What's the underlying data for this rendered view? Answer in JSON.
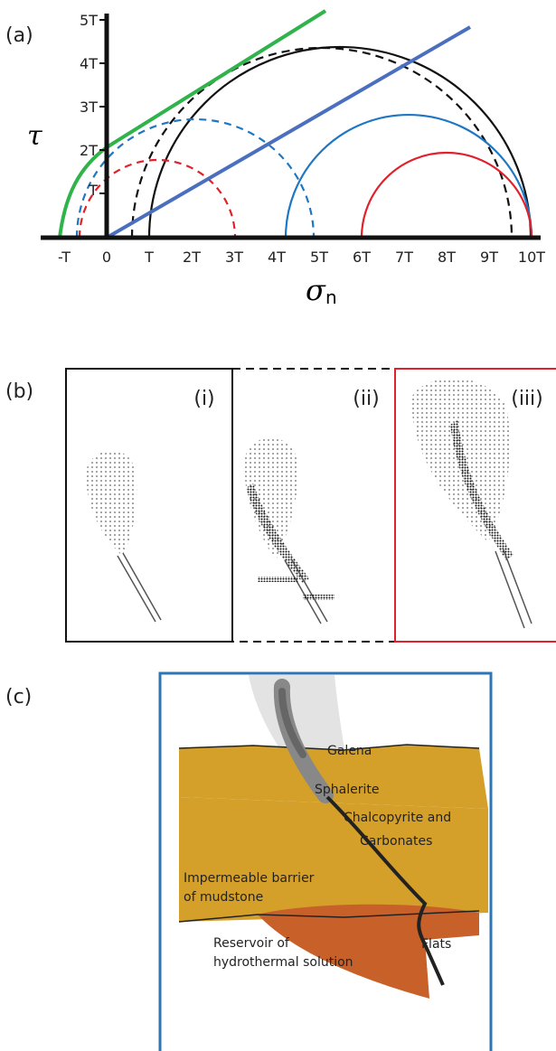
{
  "panel_a": {
    "label": "(a)",
    "y_axis_label": "τ",
    "x_axis_label_symbol": "σ",
    "x_axis_label_subscript": "n",
    "x_ticks": [
      "-T",
      "0",
      "T",
      "2T",
      "3T",
      "4T",
      "5T",
      "6T",
      "7T",
      "8T",
      "9T",
      "10T"
    ],
    "y_ticks": [
      "T",
      "2T",
      "3T",
      "4T",
      "5T"
    ]
  },
  "panel_b": {
    "label": "(b)",
    "boxes": [
      "(i)",
      "(ii)",
      "(iii)"
    ]
  },
  "panel_c": {
    "label": "(c)",
    "annotations": [
      [
        "Galena"
      ],
      [
        "Sphalerite"
      ],
      [
        "Chalcopyrite and",
        "Carbonates"
      ],
      [
        "Impermeable barrier",
        "of mudstone"
      ],
      [
        "Reservoir of",
        "hydrothermal solution"
      ],
      [
        "Flats"
      ]
    ]
  }
}
